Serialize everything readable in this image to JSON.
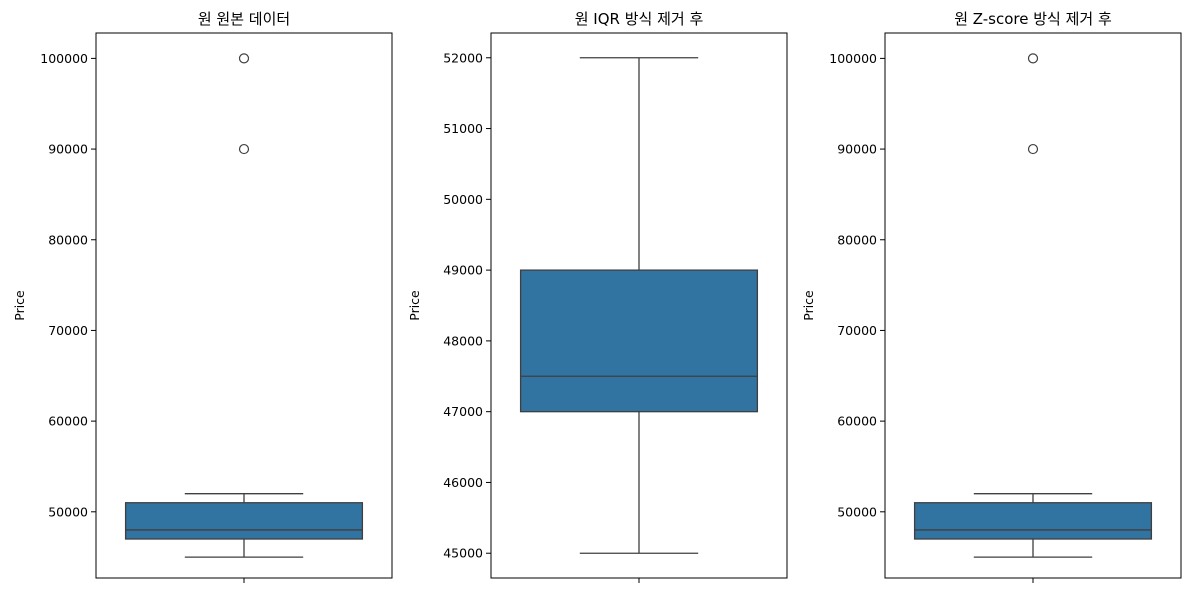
{
  "chart_data": [
    {
      "type": "boxplot",
      "title": "원 원본 데이터",
      "xlabel": "",
      "ylabel": "Price",
      "ylim": [
        42700,
        102800
      ],
      "yticks": [
        50000,
        60000,
        70000,
        80000,
        90000,
        100000
      ],
      "yticklabels": [
        "50000",
        "60000",
        "70000",
        "80000",
        "90000",
        "100000"
      ],
      "box": {
        "whisker_low": 45000,
        "q1": 47000,
        "median": 48000,
        "q3": 51000,
        "whisker_high": 52000
      },
      "outliers": [
        90000,
        100000
      ],
      "color": "#3274a1"
    },
    {
      "type": "boxplot",
      "title": "원 IQR 방식 제거 후",
      "xlabel": "",
      "ylabel": "Price",
      "ylim": [
        44650,
        52350
      ],
      "yticks": [
        45000,
        46000,
        47000,
        48000,
        49000,
        50000,
        51000,
        52000
      ],
      "yticklabels": [
        "45000",
        "46000",
        "47000",
        "48000",
        "49000",
        "50000",
        "51000",
        "52000"
      ],
      "box": {
        "whisker_low": 45000,
        "q1": 47000,
        "median": 47500,
        "q3": 49000,
        "whisker_high": 52000
      },
      "outliers": [],
      "color": "#3274a1"
    },
    {
      "type": "boxplot",
      "title": "원 Z-score 방식 제거 후",
      "xlabel": "",
      "ylabel": "Price",
      "ylim": [
        42700,
        102800
      ],
      "yticks": [
        50000,
        60000,
        70000,
        80000,
        90000,
        100000
      ],
      "yticklabels": [
        "50000",
        "60000",
        "70000",
        "80000",
        "90000",
        "100000"
      ],
      "box": {
        "whisker_low": 45000,
        "q1": 47000,
        "median": 48000,
        "q3": 51000,
        "whisker_high": 52000
      },
      "outliers": [
        90000,
        100000
      ],
      "color": "#3274a1"
    }
  ]
}
